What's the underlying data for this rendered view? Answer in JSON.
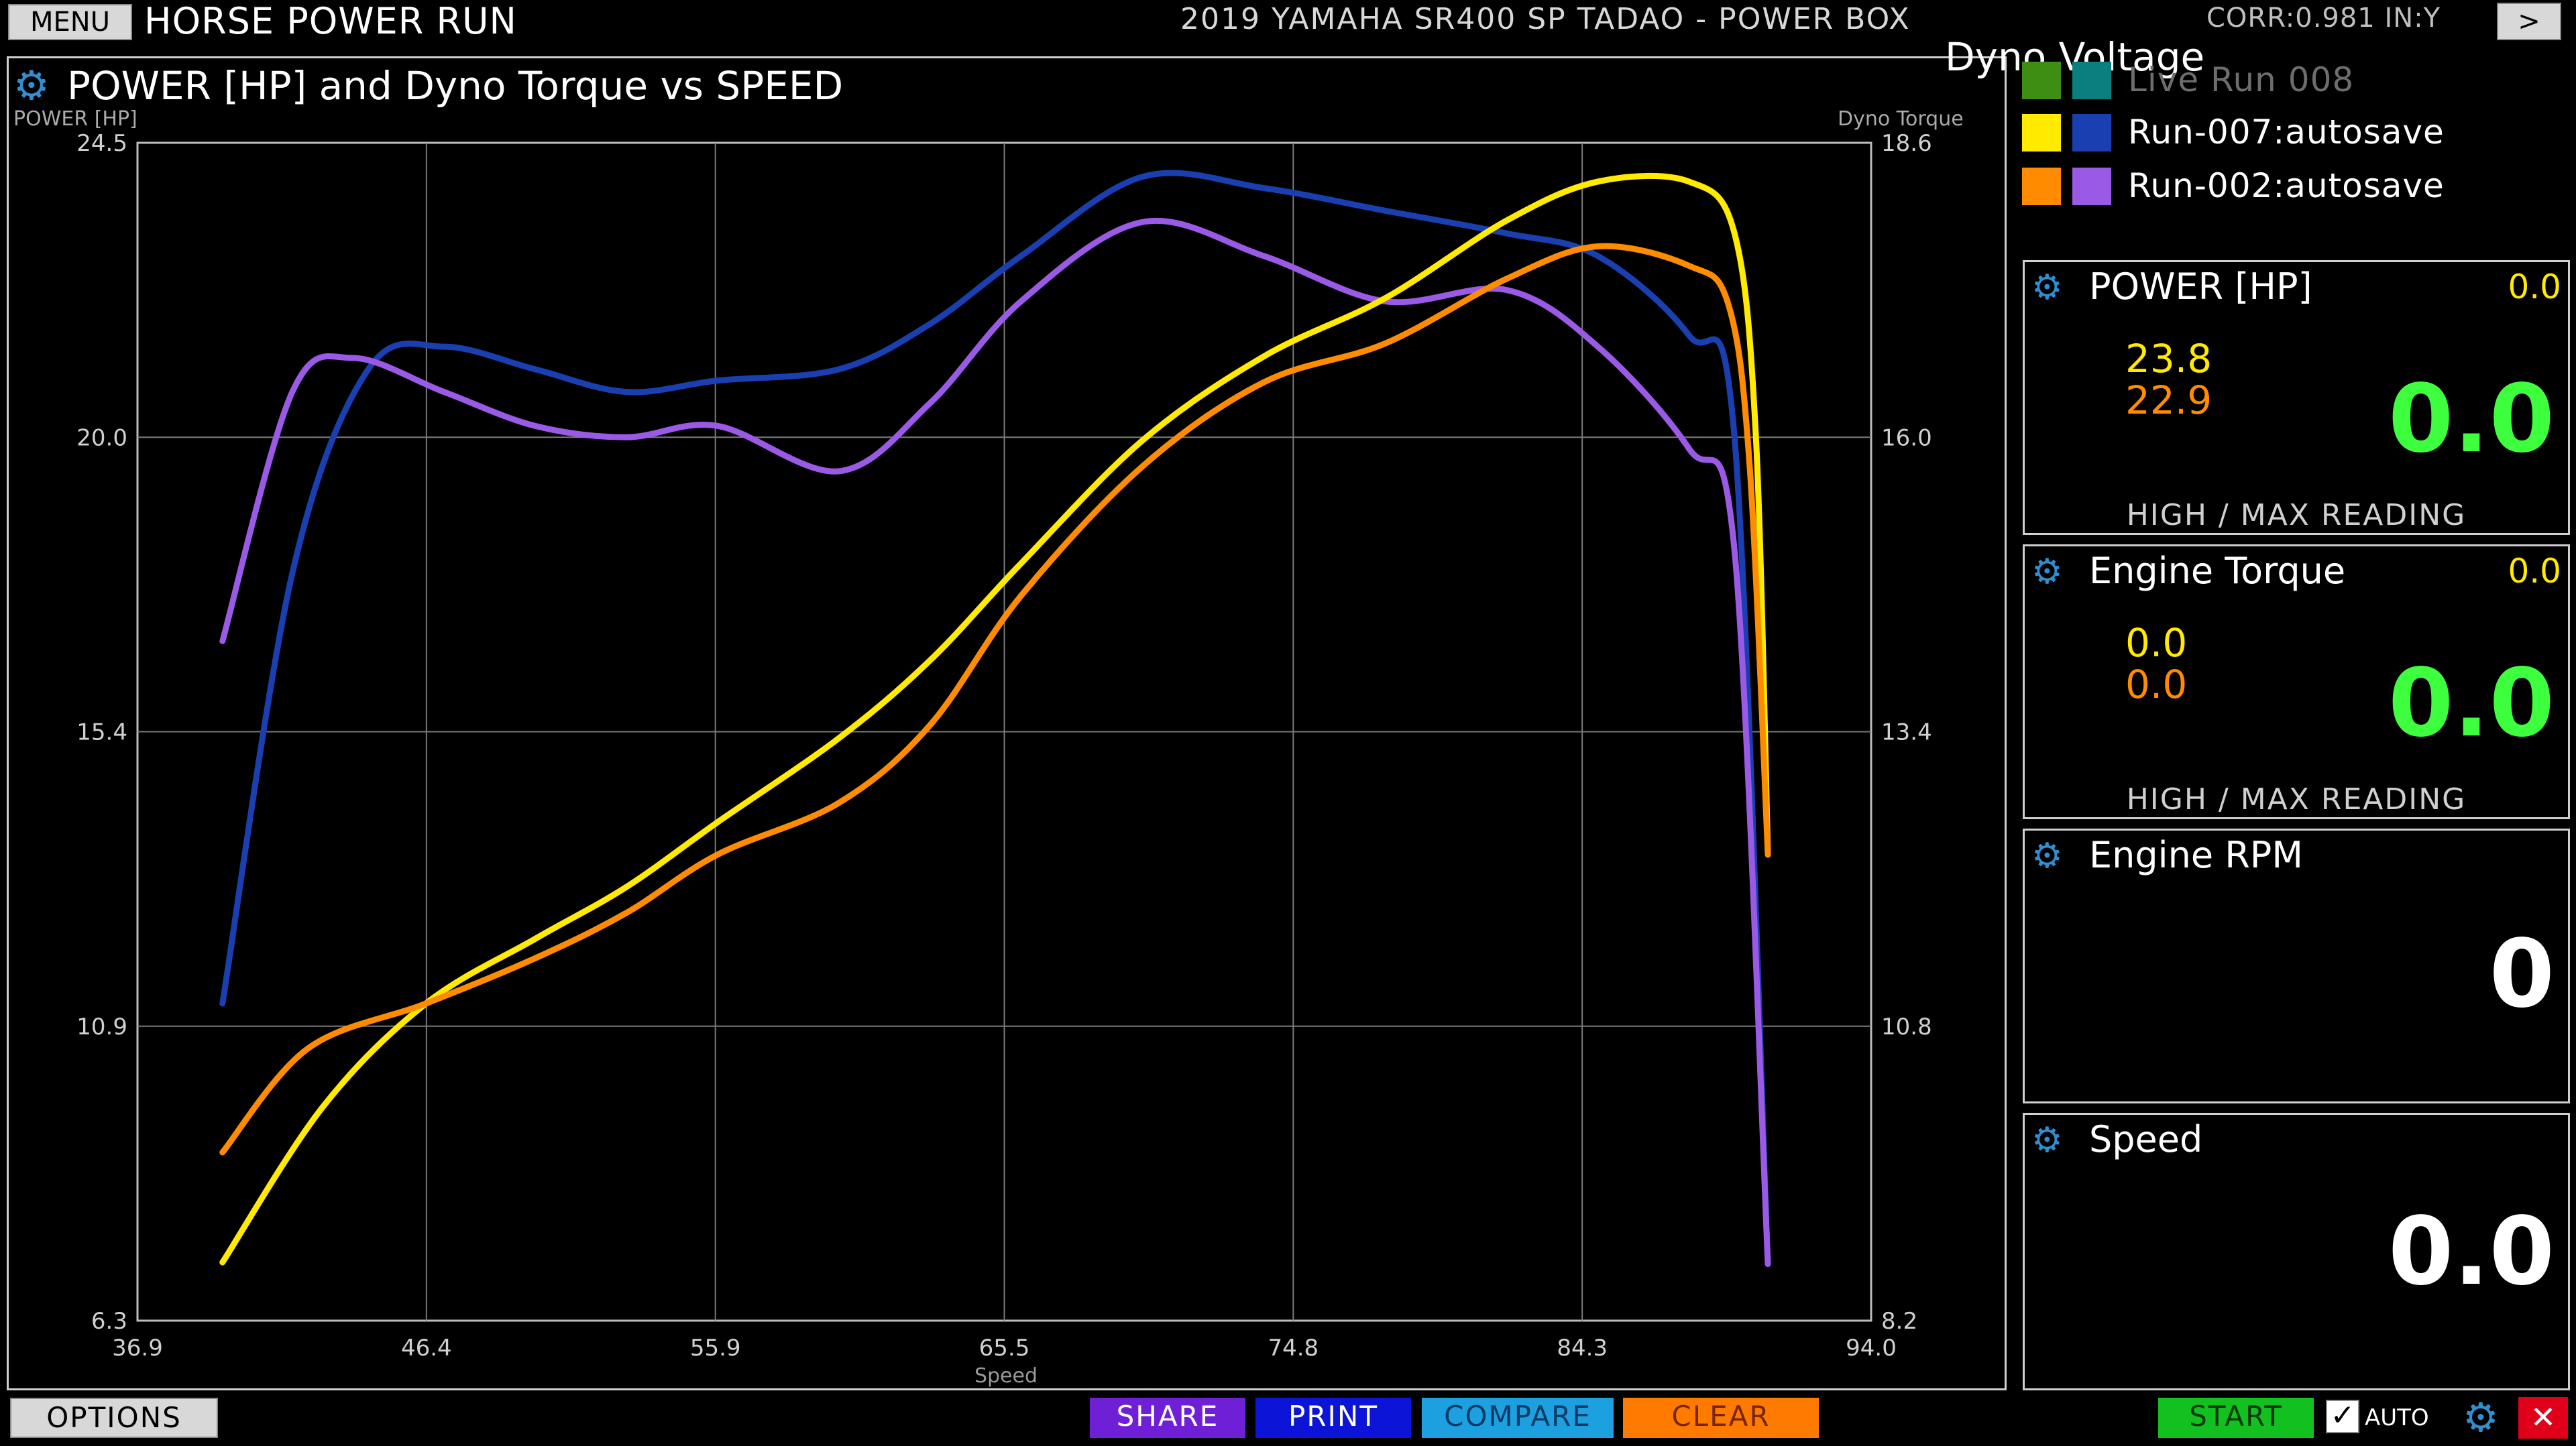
{
  "header": {
    "menu_label": "MENU",
    "app_title": "HORSE POWER RUN",
    "vehicle": "2019 YAMAHA SR400 SP TADAO - POWER BOX",
    "corr": "CORR:0.981 IN:Y",
    "next_label": ">"
  },
  "chart": {
    "title": "POWER [HP] and Dyno Torque vs SPEED",
    "left_axis_title": "POWER [HP]",
    "right_axis_title": "Dyno Torque",
    "x_label": "Speed"
  },
  "legend": {
    "title": "Dyno Voltage",
    "items": [
      {
        "label": "Live Run 008",
        "color1": "#3f8e14",
        "color2": "#0b7f80"
      },
      {
        "label": "Run-007:autosave",
        "color1": "#ffea00",
        "color2": "#1a3fb0"
      },
      {
        "label": "Run-002:autosave",
        "color1": "#ff8c00",
        "color2": "#9a5ae6"
      }
    ]
  },
  "gauges": {
    "power": {
      "title": "POWER [HP]",
      "corner": "0.0",
      "hi1": "23.8",
      "hi2": "22.9",
      "value": "0.0",
      "hint": "HIGH / MAX READING"
    },
    "torque": {
      "title": "Engine Torque",
      "corner": "0.0",
      "hi1": "0.0",
      "hi2": "0.0",
      "value": "0.0",
      "hint": "HIGH / MAX READING"
    },
    "rpm": {
      "title": "Engine RPM",
      "value": "0"
    },
    "speed": {
      "title": "Speed",
      "value": "0.0"
    }
  },
  "footer": {
    "options": "OPTIONS",
    "share": "SHARE",
    "print": "PRINT",
    "compare": "COMPARE",
    "clear": "CLEAR",
    "start": "START",
    "auto": "AUTO",
    "close": "✕"
  },
  "chart_data": {
    "type": "line",
    "title": "POWER [HP] and Dyno Torque vs SPEED",
    "xlabel": "Speed",
    "ylabel": "POWER [HP]",
    "ylabel_right": "Dyno Torque",
    "xlim": [
      36.9,
      94.0
    ],
    "ylim": [
      6.3,
      24.5
    ],
    "ylim_right": [
      8.2,
      18.6
    ],
    "x_ticks": [
      "36.9",
      "46.4",
      "55.9",
      "65.5",
      "74.8",
      "84.3",
      "94.0"
    ],
    "y_ticks": [
      "6.3",
      "10.9",
      "15.4",
      "20.0",
      "24.5"
    ],
    "y_ticks_right": [
      "8.2",
      "10.8",
      "13.4",
      "16.0",
      "18.6"
    ],
    "grid": true,
    "series": [
      {
        "name": "Run-007:autosave",
        "axis": "left",
        "color": "#ffea00",
        "points": [
          [
            39.7,
            7.2
          ],
          [
            43.0,
            9.6
          ],
          [
            46.4,
            11.2
          ],
          [
            50.0,
            12.2
          ],
          [
            53.0,
            13.0
          ],
          [
            56.0,
            14.0
          ],
          [
            60.0,
            15.3
          ],
          [
            63.0,
            16.5
          ],
          [
            66.0,
            18.0
          ],
          [
            70.0,
            19.9
          ],
          [
            74.0,
            21.2
          ],
          [
            78.0,
            22.1
          ],
          [
            82.0,
            23.3
          ],
          [
            85.0,
            23.9
          ],
          [
            88.0,
            23.9
          ],
          [
            89.5,
            23.1
          ],
          [
            90.2,
            20.0
          ],
          [
            90.6,
            13.5
          ]
        ]
      },
      {
        "name": "Run-002:autosave",
        "axis": "left",
        "color": "#ff8c00",
        "points": [
          [
            39.7,
            8.9
          ],
          [
            42.5,
            10.5
          ],
          [
            46.4,
            11.2
          ],
          [
            50.0,
            11.9
          ],
          [
            53.0,
            12.6
          ],
          [
            56.0,
            13.5
          ],
          [
            60.0,
            14.3
          ],
          [
            63.0,
            15.5
          ],
          [
            66.0,
            17.5
          ],
          [
            70.0,
            19.5
          ],
          [
            74.0,
            20.8
          ],
          [
            78.0,
            21.4
          ],
          [
            82.0,
            22.4
          ],
          [
            85.0,
            22.9
          ],
          [
            88.0,
            22.6
          ],
          [
            89.3,
            22.0
          ],
          [
            90.0,
            19.5
          ],
          [
            90.6,
            13.5
          ]
        ]
      },
      {
        "name": "Run-007:autosave",
        "axis": "right",
        "color": "#1a3fb0",
        "points": [
          [
            39.7,
            11.0
          ],
          [
            42.0,
            14.8
          ],
          [
            44.5,
            16.6
          ],
          [
            47.0,
            16.8
          ],
          [
            50.0,
            16.6
          ],
          [
            53.0,
            16.4
          ],
          [
            56.0,
            16.5
          ],
          [
            60.0,
            16.6
          ],
          [
            63.0,
            17.0
          ],
          [
            66.0,
            17.6
          ],
          [
            70.0,
            18.3
          ],
          [
            74.0,
            18.2
          ],
          [
            78.0,
            18.0
          ],
          [
            82.0,
            17.8
          ],
          [
            85.0,
            17.6
          ],
          [
            88.0,
            16.9
          ],
          [
            89.5,
            16.0
          ],
          [
            90.6,
            8.7
          ]
        ]
      },
      {
        "name": "Run-002:autosave",
        "axis": "right",
        "color": "#9a5ae6",
        "points": [
          [
            39.7,
            14.2
          ],
          [
            42.0,
            16.4
          ],
          [
            44.0,
            16.7
          ],
          [
            47.0,
            16.4
          ],
          [
            50.0,
            16.1
          ],
          [
            53.0,
            16.0
          ],
          [
            56.0,
            16.1
          ],
          [
            60.0,
            15.7
          ],
          [
            63.0,
            16.3
          ],
          [
            66.0,
            17.2
          ],
          [
            70.0,
            17.9
          ],
          [
            74.0,
            17.6
          ],
          [
            78.0,
            17.2
          ],
          [
            82.0,
            17.3
          ],
          [
            85.0,
            16.8
          ],
          [
            88.0,
            15.9
          ],
          [
            89.5,
            15.0
          ],
          [
            90.6,
            8.7
          ]
        ]
      }
    ]
  }
}
